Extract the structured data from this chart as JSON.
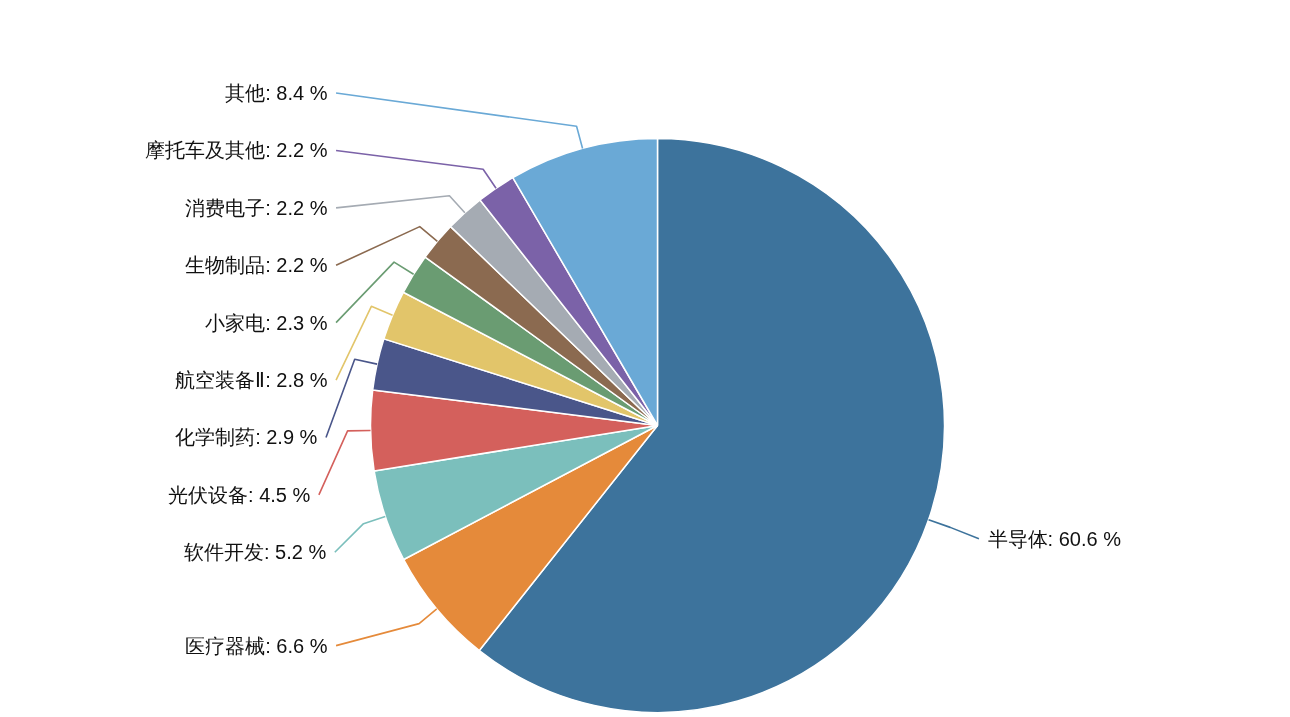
{
  "chart_data": {
    "type": "pie",
    "categories": [
      "半导体",
      "医疗器械",
      "软件开发",
      "光伏设备",
      "化学制药",
      "航空装备Ⅱ",
      "小家电",
      "生物制品",
      "消费电子",
      "摩托车及其他",
      "其他"
    ],
    "values": [
      60.6,
      6.6,
      5.2,
      4.5,
      2.9,
      2.8,
      2.3,
      2.2,
      2.2,
      2.2,
      8.4
    ],
    "value_labels": [
      "60.6 %",
      "6.6 %",
      "5.2 %",
      "4.5 %",
      "2.9 %",
      "2.8 %",
      "2.3 %",
      "2.2 %",
      "2.2 %",
      "2.2 %",
      "8.4 %"
    ],
    "colors": [
      "#3d739c",
      "#e58a3a",
      "#7bbfbc",
      "#d4605c",
      "#4a568a",
      "#e2c56a",
      "#6a9c72",
      "#8b6a50",
      "#a5abb3",
      "#7b62a8",
      "#6aa9d6"
    ]
  }
}
